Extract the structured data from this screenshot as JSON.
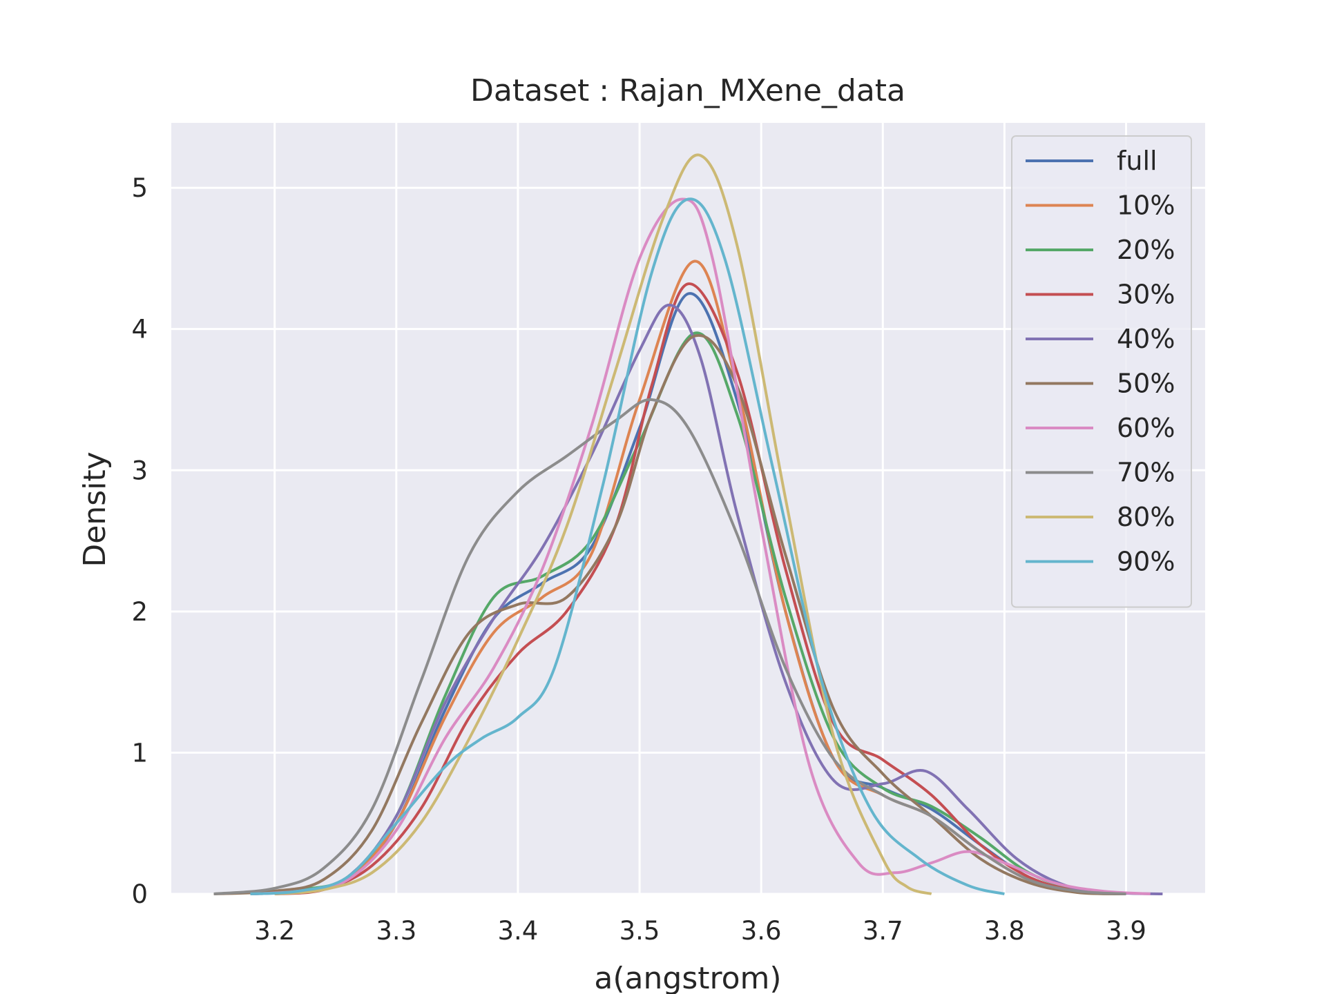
{
  "chart_data": {
    "type": "line",
    "title": "Dataset : Rajan_MXene_data",
    "xlabel": "a(angstrom)",
    "ylabel": "Density",
    "xlim": [
      3.115,
      3.965
    ],
    "ylim": [
      0,
      5.46
    ],
    "xticks": [
      3.2,
      3.3,
      3.4,
      3.5,
      3.6,
      3.7,
      3.8,
      3.9
    ],
    "xtick_labels": [
      "3.2",
      "3.3",
      "3.4",
      "3.5",
      "3.6",
      "3.7",
      "3.8",
      "3.9"
    ],
    "yticks": [
      0,
      1,
      2,
      3,
      4,
      5
    ],
    "ytick_labels": [
      "0",
      "1",
      "2",
      "3",
      "4",
      "5"
    ],
    "grid": true,
    "legend_position": "top-right",
    "series": [
      {
        "name": "full",
        "color": "#4c72b0",
        "points": [
          [
            3.18,
            0
          ],
          [
            3.22,
            0.02
          ],
          [
            3.26,
            0.1
          ],
          [
            3.3,
            0.5
          ],
          [
            3.34,
            1.3
          ],
          [
            3.38,
            1.95
          ],
          [
            3.42,
            2.2
          ],
          [
            3.46,
            2.45
          ],
          [
            3.5,
            3.3
          ],
          [
            3.54,
            4.25
          ],
          [
            3.58,
            3.5
          ],
          [
            3.62,
            2.0
          ],
          [
            3.66,
            0.95
          ],
          [
            3.7,
            0.75
          ],
          [
            3.74,
            0.6
          ],
          [
            3.78,
            0.35
          ],
          [
            3.82,
            0.12
          ],
          [
            3.86,
            0.02
          ],
          [
            3.9,
            0
          ]
        ]
      },
      {
        "name": "10%",
        "color": "#dd8452",
        "points": [
          [
            3.18,
            0
          ],
          [
            3.22,
            0.02
          ],
          [
            3.26,
            0.1
          ],
          [
            3.3,
            0.5
          ],
          [
            3.34,
            1.25
          ],
          [
            3.38,
            1.85
          ],
          [
            3.42,
            2.1
          ],
          [
            3.46,
            2.4
          ],
          [
            3.5,
            3.5
          ],
          [
            3.545,
            4.48
          ],
          [
            3.58,
            3.6
          ],
          [
            3.62,
            2.0
          ],
          [
            3.66,
            0.95
          ],
          [
            3.7,
            0.7
          ],
          [
            3.74,
            0.55
          ],
          [
            3.78,
            0.3
          ],
          [
            3.82,
            0.1
          ],
          [
            3.86,
            0.02
          ],
          [
            3.9,
            0
          ]
        ]
      },
      {
        "name": "20%",
        "color": "#55a868",
        "points": [
          [
            3.18,
            0
          ],
          [
            3.22,
            0.03
          ],
          [
            3.26,
            0.12
          ],
          [
            3.3,
            0.55
          ],
          [
            3.34,
            1.4
          ],
          [
            3.38,
            2.1
          ],
          [
            3.42,
            2.25
          ],
          [
            3.46,
            2.5
          ],
          [
            3.5,
            3.2
          ],
          [
            3.545,
            3.97
          ],
          [
            3.58,
            3.4
          ],
          [
            3.62,
            2.1
          ],
          [
            3.66,
            1.1
          ],
          [
            3.7,
            0.75
          ],
          [
            3.74,
            0.62
          ],
          [
            3.78,
            0.4
          ],
          [
            3.82,
            0.15
          ],
          [
            3.86,
            0.03
          ],
          [
            3.9,
            0
          ]
        ]
      },
      {
        "name": "30%",
        "color": "#c44e52",
        "points": [
          [
            3.2,
            0
          ],
          [
            3.24,
            0.03
          ],
          [
            3.28,
            0.2
          ],
          [
            3.32,
            0.6
          ],
          [
            3.36,
            1.25
          ],
          [
            3.4,
            1.7
          ],
          [
            3.44,
            2.0
          ],
          [
            3.48,
            2.6
          ],
          [
            3.51,
            3.6
          ],
          [
            3.54,
            4.32
          ],
          [
            3.58,
            3.7
          ],
          [
            3.62,
            2.3
          ],
          [
            3.66,
            1.2
          ],
          [
            3.7,
            0.95
          ],
          [
            3.74,
            0.7
          ],
          [
            3.78,
            0.35
          ],
          [
            3.82,
            0.12
          ],
          [
            3.86,
            0.02
          ],
          [
            3.9,
            0
          ]
        ]
      },
      {
        "name": "40%",
        "color": "#8172b3",
        "points": [
          [
            3.18,
            0
          ],
          [
            3.22,
            0.02
          ],
          [
            3.26,
            0.12
          ],
          [
            3.3,
            0.55
          ],
          [
            3.34,
            1.35
          ],
          [
            3.38,
            1.95
          ],
          [
            3.42,
            2.45
          ],
          [
            3.46,
            3.1
          ],
          [
            3.5,
            3.85
          ],
          [
            3.525,
            4.17
          ],
          [
            3.55,
            3.8
          ],
          [
            3.58,
            2.7
          ],
          [
            3.62,
            1.5
          ],
          [
            3.66,
            0.8
          ],
          [
            3.7,
            0.78
          ],
          [
            3.735,
            0.87
          ],
          [
            3.77,
            0.6
          ],
          [
            3.81,
            0.25
          ],
          [
            3.85,
            0.06
          ],
          [
            3.89,
            0.01
          ],
          [
            3.93,
            0
          ]
        ]
      },
      {
        "name": "50%",
        "color": "#937860",
        "points": [
          [
            3.15,
            0
          ],
          [
            3.2,
            0.02
          ],
          [
            3.24,
            0.1
          ],
          [
            3.28,
            0.45
          ],
          [
            3.32,
            1.2
          ],
          [
            3.36,
            1.85
          ],
          [
            3.4,
            2.05
          ],
          [
            3.44,
            2.1
          ],
          [
            3.48,
            2.6
          ],
          [
            3.51,
            3.4
          ],
          [
            3.545,
            3.95
          ],
          [
            3.58,
            3.6
          ],
          [
            3.62,
            2.4
          ],
          [
            3.66,
            1.3
          ],
          [
            3.7,
            0.85
          ],
          [
            3.74,
            0.55
          ],
          [
            3.78,
            0.25
          ],
          [
            3.82,
            0.08
          ],
          [
            3.86,
            0.01
          ],
          [
            3.9,
            0
          ]
        ]
      },
      {
        "name": "60%",
        "color": "#da8bc3",
        "points": [
          [
            3.18,
            0
          ],
          [
            3.22,
            0.02
          ],
          [
            3.26,
            0.1
          ],
          [
            3.3,
            0.45
          ],
          [
            3.34,
            1.1
          ],
          [
            3.38,
            1.6
          ],
          [
            3.42,
            2.3
          ],
          [
            3.46,
            3.3
          ],
          [
            3.5,
            4.5
          ],
          [
            3.535,
            4.92
          ],
          [
            3.56,
            4.5
          ],
          [
            3.6,
            2.6
          ],
          [
            3.64,
            0.9
          ],
          [
            3.68,
            0.22
          ],
          [
            3.71,
            0.15
          ],
          [
            3.74,
            0.22
          ],
          [
            3.77,
            0.3
          ],
          [
            3.8,
            0.22
          ],
          [
            3.84,
            0.08
          ],
          [
            3.88,
            0.02
          ],
          [
            3.92,
            0
          ]
        ]
      },
      {
        "name": "70%",
        "color": "#8c8c8c",
        "points": [
          [
            3.15,
            0
          ],
          [
            3.2,
            0.04
          ],
          [
            3.24,
            0.18
          ],
          [
            3.28,
            0.6
          ],
          [
            3.32,
            1.5
          ],
          [
            3.36,
            2.4
          ],
          [
            3.4,
            2.85
          ],
          [
            3.44,
            3.1
          ],
          [
            3.48,
            3.35
          ],
          [
            3.51,
            3.5
          ],
          [
            3.54,
            3.3
          ],
          [
            3.58,
            2.55
          ],
          [
            3.62,
            1.6
          ],
          [
            3.66,
            0.95
          ],
          [
            3.7,
            0.7
          ],
          [
            3.74,
            0.55
          ],
          [
            3.78,
            0.3
          ],
          [
            3.82,
            0.1
          ],
          [
            3.86,
            0.02
          ],
          [
            3.9,
            0
          ]
        ]
      },
      {
        "name": "80%",
        "color": "#ccb974",
        "points": [
          [
            3.2,
            0
          ],
          [
            3.24,
            0.03
          ],
          [
            3.28,
            0.15
          ],
          [
            3.32,
            0.5
          ],
          [
            3.36,
            1.1
          ],
          [
            3.4,
            1.8
          ],
          [
            3.44,
            2.6
          ],
          [
            3.48,
            3.7
          ],
          [
            3.52,
            4.8
          ],
          [
            3.55,
            5.23
          ],
          [
            3.58,
            4.6
          ],
          [
            3.62,
            2.8
          ],
          [
            3.66,
            1.1
          ],
          [
            3.7,
            0.25
          ],
          [
            3.72,
            0.05
          ],
          [
            3.74,
            0
          ]
        ]
      },
      {
        "name": "90%",
        "color": "#64b5cd",
        "points": [
          [
            3.18,
            0
          ],
          [
            3.22,
            0.02
          ],
          [
            3.26,
            0.12
          ],
          [
            3.3,
            0.5
          ],
          [
            3.34,
            0.9
          ],
          [
            3.37,
            1.1
          ],
          [
            3.4,
            1.25
          ],
          [
            3.43,
            1.6
          ],
          [
            3.47,
            2.9
          ],
          [
            3.51,
            4.4
          ],
          [
            3.54,
            4.92
          ],
          [
            3.57,
            4.5
          ],
          [
            3.61,
            3.0
          ],
          [
            3.65,
            1.5
          ],
          [
            3.69,
            0.6
          ],
          [
            3.73,
            0.25
          ],
          [
            3.77,
            0.06
          ],
          [
            3.8,
            0
          ]
        ]
      }
    ]
  }
}
